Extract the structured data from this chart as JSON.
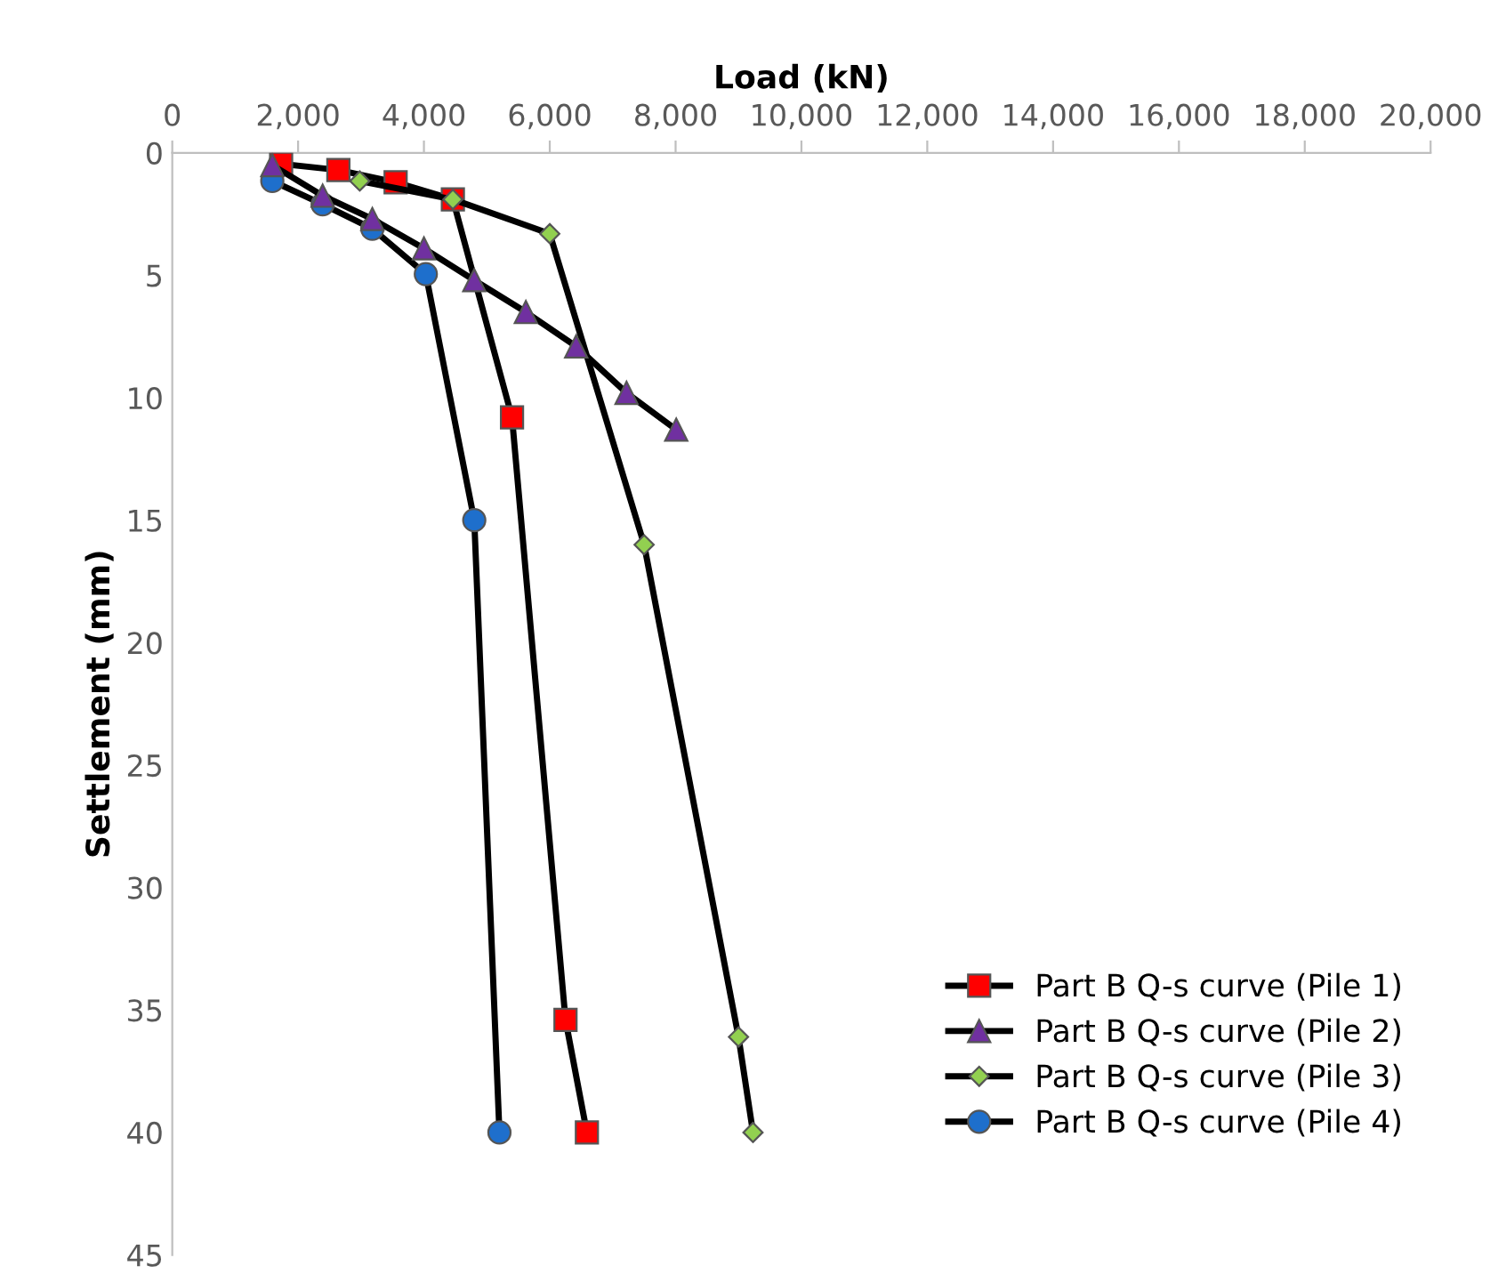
{
  "chart_data": {
    "type": "line",
    "xlabel": "Load (kN)",
    "ylabel": "Settlement (mm)",
    "xlim": [
      0,
      20000
    ],
    "xticks": [
      {
        "value": 0,
        "label": "0"
      },
      {
        "value": 2000,
        "label": "2,000"
      },
      {
        "value": 4000,
        "label": "4,000"
      },
      {
        "value": 6000,
        "label": "6,000"
      },
      {
        "value": 8000,
        "label": "8,000"
      },
      {
        "value": 10000,
        "label": "10,000"
      },
      {
        "value": 12000,
        "label": "12,000"
      },
      {
        "value": 14000,
        "label": "14,000"
      },
      {
        "value": 16000,
        "label": "16,000"
      },
      {
        "value": 18000,
        "label": "18,000"
      },
      {
        "value": 20000,
        "label": "20,000"
      }
    ],
    "ylim": [
      45,
      0
    ],
    "yticks": [
      0,
      5,
      10,
      15,
      20,
      25,
      30,
      35,
      40,
      45
    ],
    "grid": false,
    "legend": "bottom right",
    "series": [
      {
        "name": "Part B Q-s curve (Pile 1)",
        "color": "#ff0000",
        "marker": "square",
        "x": [
          1730,
          2640,
          3550,
          4460,
          5400,
          6250,
          6590
        ],
        "values": [
          0.45,
          0.7,
          1.2,
          1.9,
          10.8,
          35.4,
          40
        ]
      },
      {
        "name": "Part B Q-s curve (Pile 2)",
        "color": "#7030a0",
        "marker": "triangle",
        "x": [
          1590,
          2390,
          3180,
          4000,
          4800,
          5620,
          6420,
          7220,
          8010
        ],
        "values": [
          0.5,
          1.75,
          2.7,
          3.9,
          5.2,
          6.5,
          7.9,
          9.8,
          11.3
        ]
      },
      {
        "name": "Part B Q-s curve (Pile 3)",
        "color": "#92d050",
        "marker": "diamond",
        "x": [
          2980,
          4460,
          6000,
          7500,
          9000,
          9230
        ],
        "values": [
          1.15,
          1.9,
          3.3,
          16,
          36.1,
          40
        ]
      },
      {
        "name": "Part B Q-s curve (Pile 4)",
        "color": "#1e6fcc",
        "marker": "circle",
        "x": [
          1590,
          2390,
          3180,
          4030,
          4800,
          5200
        ],
        "values": [
          1.15,
          2.1,
          3.1,
          4.95,
          15,
          40
        ]
      }
    ]
  }
}
